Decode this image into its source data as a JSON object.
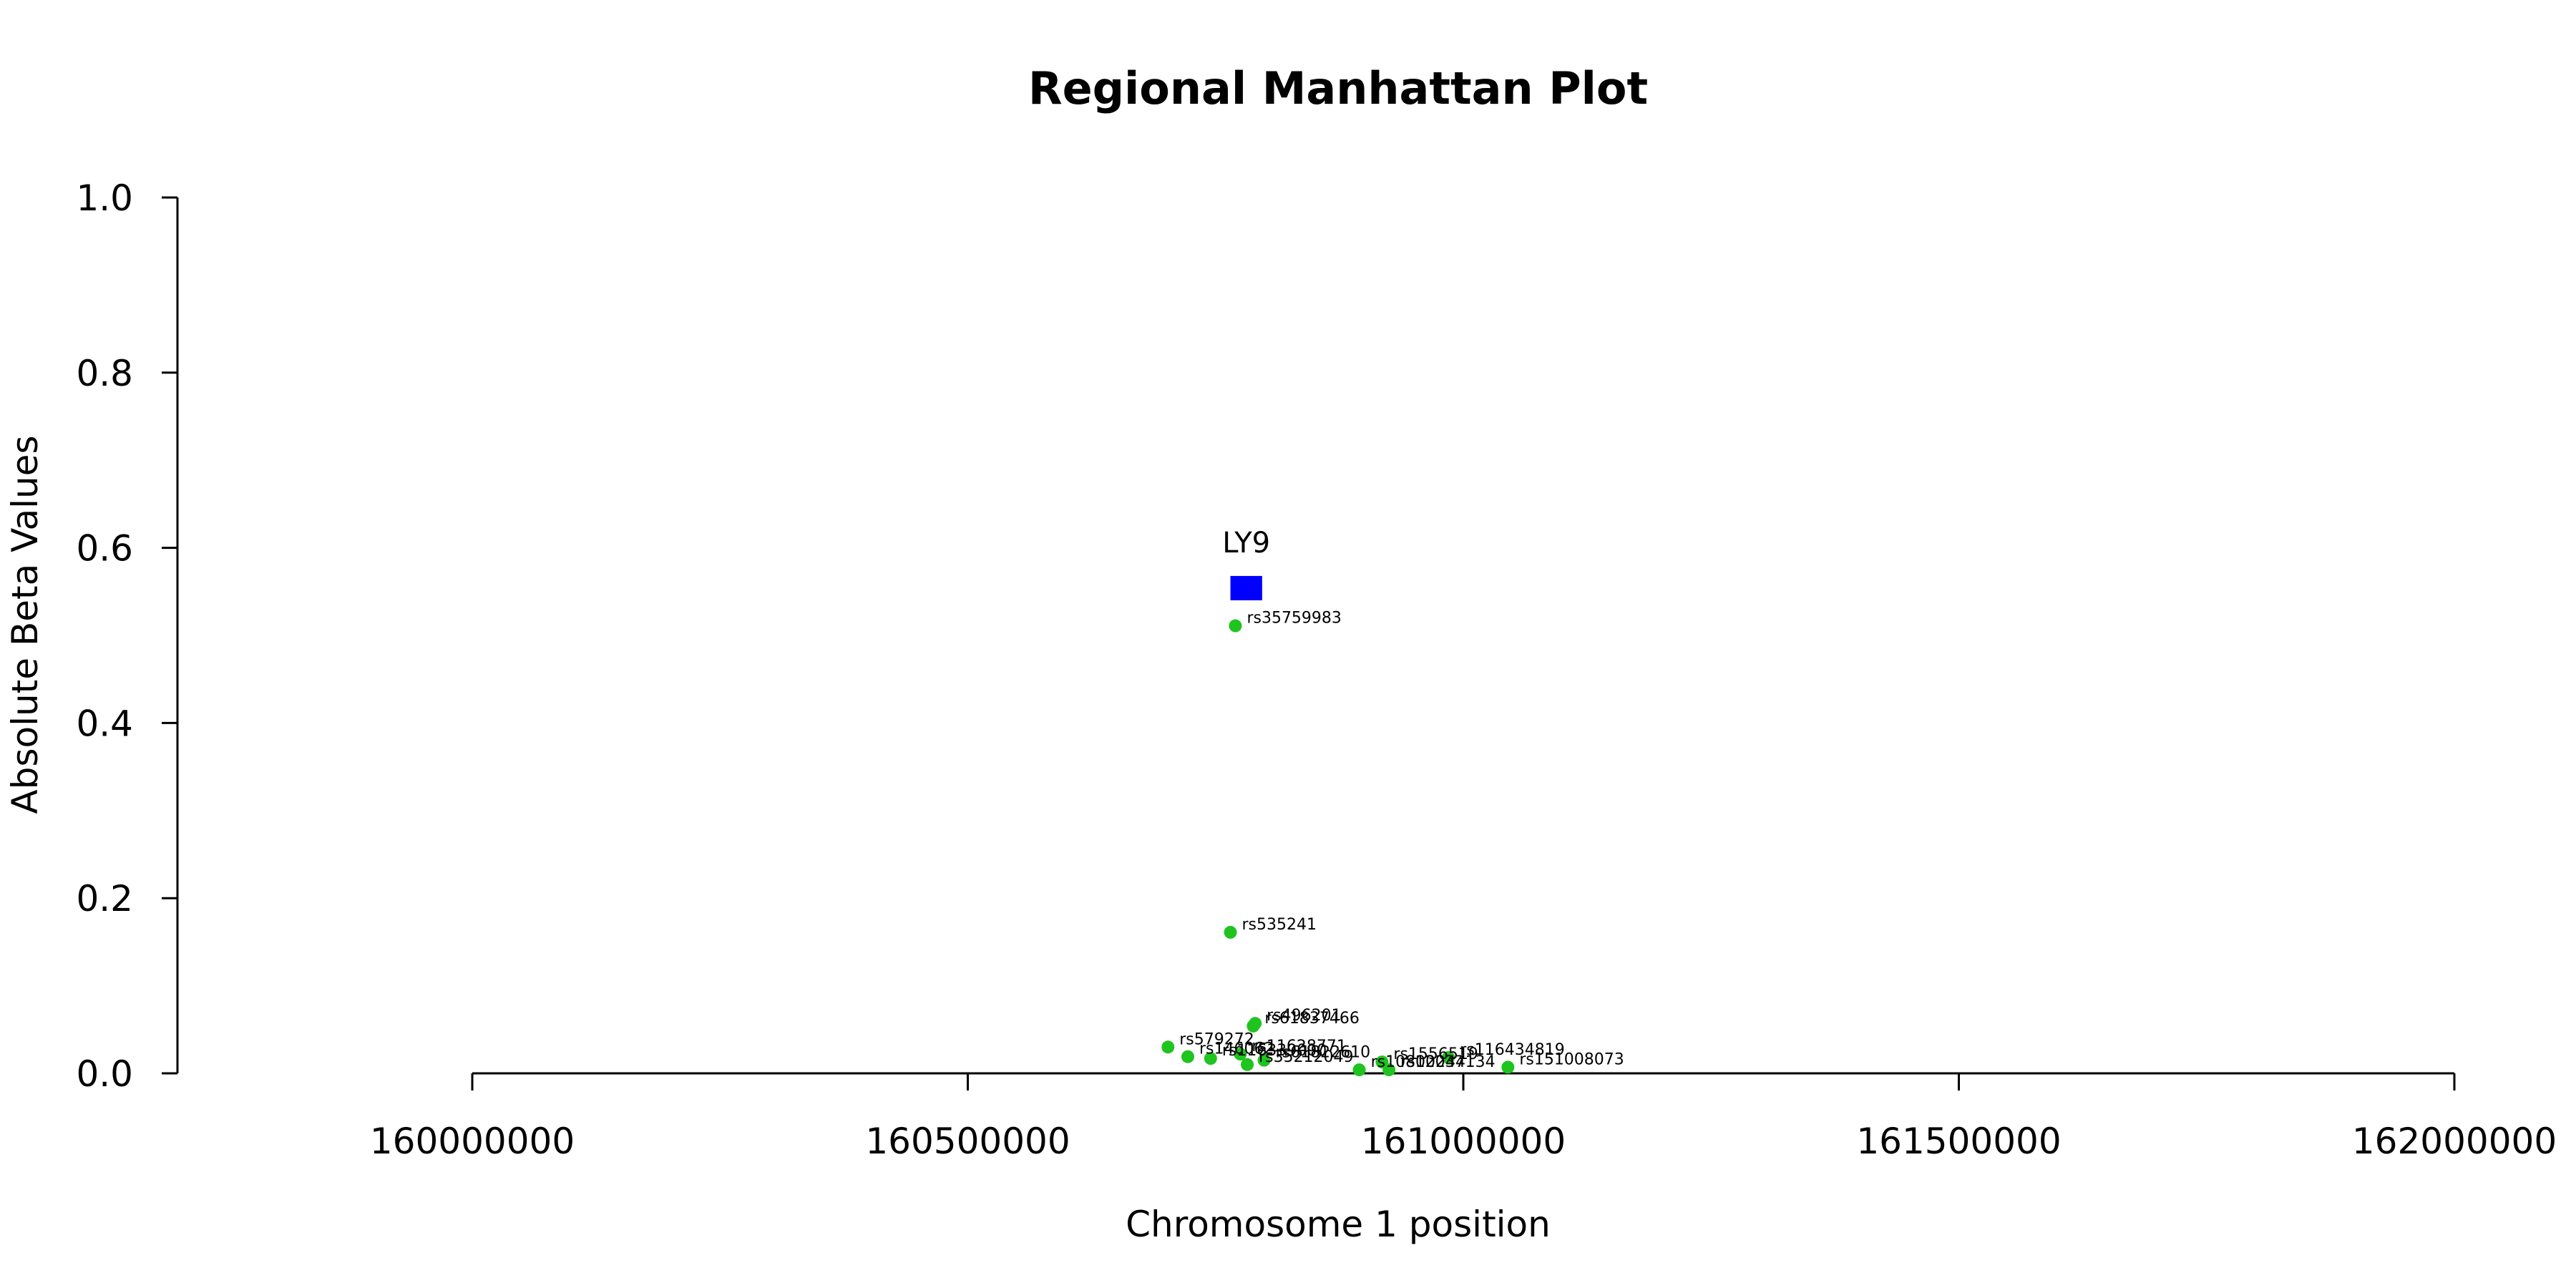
{
  "chart_data": {
    "type": "scatter",
    "title": "Regional Manhattan Plot",
    "xlabel": "Chromosome 1 position",
    "ylabel": "Absolute Beta Values",
    "xlim": [
      159700000,
      162100000
    ],
    "ylim": [
      0,
      1.0
    ],
    "x_ticks": [
      160000000,
      160500000,
      161000000,
      161500000,
      162000000
    ],
    "x_tick_labels": [
      "160000000",
      "160500000",
      "161000000",
      "161500000",
      "162000000"
    ],
    "y_ticks": [
      0,
      0.2,
      0.4,
      0.6,
      0.8,
      1.0
    ],
    "y_tick_labels": [
      "0.0",
      "0.2",
      "0.4",
      "0.6",
      "0.8",
      "1.0"
    ],
    "grid": false,
    "point_color": "#1fc41f",
    "gene_color": "#0000ff",
    "gene": {
      "name": "LY9",
      "start": 160765000,
      "end": 160797000,
      "y": 0.554
    },
    "snps": [
      {
        "id": "rs35759983",
        "x": 160770000,
        "y": 0.511
      },
      {
        "id": "rs535241",
        "x": 160765000,
        "y": 0.161
      },
      {
        "id": "rs496201",
        "x": 160790000,
        "y": 0.057
      },
      {
        "id": "rs61837466",
        "x": 160788000,
        "y": 0.054
      },
      {
        "id": "rs579272",
        "x": 160702000,
        "y": 0.03
      },
      {
        "id": "rs146062",
        "x": 160722000,
        "y": 0.019
      },
      {
        "id": "rs116339000",
        "x": 160745000,
        "y": 0.017
      },
      {
        "id": "rs11628771",
        "x": 160775000,
        "y": 0.022
      },
      {
        "id": "rs61822610",
        "x": 160799000,
        "y": 0.015
      },
      {
        "id": "rs35212049",
        "x": 160782000,
        "y": 0.01
      },
      {
        "id": "rs1556519",
        "x": 160918000,
        "y": 0.013
      },
      {
        "id": "rs116434819",
        "x": 160985000,
        "y": 0.018
      },
      {
        "id": "rs151008073",
        "x": 161045000,
        "y": 0.007
      },
      {
        "id": "rs10800244",
        "x": 160895000,
        "y": 0.004
      },
      {
        "id": "rs12037134",
        "x": 160925000,
        "y": 0.004
      }
    ]
  }
}
